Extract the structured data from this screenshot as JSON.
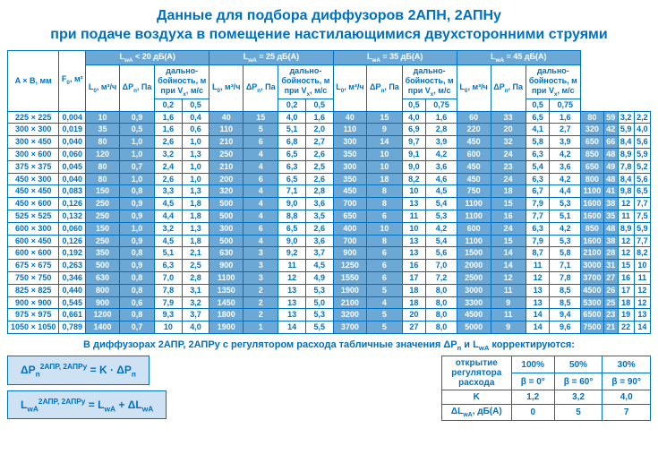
{
  "title_line1": "Данные для подбора диффузоров 2АПН, 2АПНу",
  "title_line2": "при подаче воздуха в помещение настилающимися двухсторонними струями",
  "table": {
    "col_size_header": "A × B, мм",
    "col_f0_header_html": "F<sub>0</sub>, м²",
    "group_headers": [
      "L<sub>wA</sub> < 20 дБ(A)",
      "L<sub>wA</sub> = 25 дБ(A)",
      "L<sub>wA</sub> = 35 дБ(A)",
      "L<sub>wA</sub> = 45 дБ(A)"
    ],
    "sub_L_html": "L<sub>0</sub>, м³/ч",
    "sub_dP_html": "ΔP<sub>п</sub>, Па",
    "sub_range_html": "дально-<br>бойность, м<br>при V<sub>x</sub>, м/с",
    "sub_range_cols_full": [
      "0,2",
      "0,5"
    ],
    "sub_range_cols_half": [
      "0,5",
      "0,75"
    ],
    "rows": [
      [
        "225 × 225",
        "0,004",
        "10",
        "0,9",
        "1,6",
        "0,4",
        "40",
        "15",
        "4,0",
        "1,6",
        "40",
        "15",
        "4,0",
        "1,6",
        "60",
        "33",
        "6,5",
        "1,6",
        "80",
        "59",
        "3,2",
        "2,2"
      ],
      [
        "300 × 300",
        "0,019",
        "35",
        "0,5",
        "1,6",
        "0,6",
        "110",
        "5",
        "5,1",
        "2,0",
        "110",
        "9",
        "6,9",
        "2,8",
        "220",
        "20",
        "4,1",
        "2,7",
        "320",
        "42",
        "5,9",
        "4,0"
      ],
      [
        "300 × 450",
        "0,040",
        "80",
        "1,0",
        "2,6",
        "1,0",
        "210",
        "6",
        "6,8",
        "2,7",
        "300",
        "14",
        "9,7",
        "3,9",
        "450",
        "32",
        "5,8",
        "3,9",
        "650",
        "66",
        "8,4",
        "5,6"
      ],
      [
        "300 × 600",
        "0,060",
        "120",
        "1,0",
        "3,2",
        "1,3",
        "250",
        "4",
        "6,5",
        "2,6",
        "350",
        "10",
        "9,1",
        "4,2",
        "600",
        "24",
        "6,3",
        "4,2",
        "850",
        "48",
        "8,9",
        "5,9"
      ],
      [
        "375 × 375",
        "0,045",
        "80",
        "0,7",
        "2,4",
        "1,0",
        "210",
        "4",
        "6,3",
        "2,5",
        "300",
        "10",
        "9,0",
        "3,6",
        "450",
        "23",
        "5,4",
        "3,6",
        "650",
        "49",
        "7,8",
        "5,2"
      ],
      [
        "450 × 300",
        "0,040",
        "80",
        "1,0",
        "2,6",
        "1,0",
        "200",
        "6",
        "6,5",
        "2,6",
        "350",
        "18",
        "8,2",
        "4,6",
        "450",
        "24",
        "6,3",
        "4,2",
        "800",
        "48",
        "8,4",
        "5,6"
      ],
      [
        "450 × 450",
        "0,083",
        "150",
        "0,8",
        "3,3",
        "1,3",
        "320",
        "4",
        "7,1",
        "2,8",
        "450",
        "8",
        "10",
        "4,5",
        "750",
        "18",
        "6,7",
        "4,4",
        "1100",
        "41",
        "9,8",
        "6,5"
      ],
      [
        "450 × 600",
        "0,126",
        "250",
        "0,9",
        "4,5",
        "1,8",
        "500",
        "4",
        "9,0",
        "3,6",
        "700",
        "8",
        "13",
        "5,4",
        "1100",
        "15",
        "7,9",
        "5,3",
        "1600",
        "38",
        "12",
        "7,7"
      ],
      [
        "525 × 525",
        "0,132",
        "250",
        "0,9",
        "4,4",
        "1,8",
        "500",
        "4",
        "8,8",
        "3,5",
        "650",
        "6",
        "11",
        "5,3",
        "1100",
        "16",
        "7,7",
        "5,1",
        "1600",
        "35",
        "11",
        "7,5"
      ],
      [
        "600 × 300",
        "0,060",
        "150",
        "1,0",
        "3,2",
        "1,3",
        "300",
        "6",
        "6,5",
        "2,6",
        "400",
        "10",
        "10",
        "4,2",
        "600",
        "24",
        "6,3",
        "4,2",
        "850",
        "48",
        "8,9",
        "5,9"
      ],
      [
        "600 × 450",
        "0,126",
        "250",
        "0,9",
        "4,5",
        "1,8",
        "500",
        "4",
        "9,0",
        "3,6",
        "700",
        "8",
        "13",
        "5,4",
        "1100",
        "15",
        "7,9",
        "5,3",
        "1600",
        "38",
        "12",
        "7,7"
      ],
      [
        "600 × 600",
        "0,192",
        "350",
        "0,8",
        "5,1",
        "2,1",
        "630",
        "3",
        "9,2",
        "3,7",
        "900",
        "6",
        "13",
        "5,6",
        "1500",
        "14",
        "8,7",
        "5,8",
        "2100",
        "28",
        "12",
        "8,2"
      ],
      [
        "675 × 675",
        "0,263",
        "500",
        "0,9",
        "6,3",
        "2,5",
        "900",
        "3",
        "11",
        "4,5",
        "1250",
        "6",
        "16",
        "7,0",
        "2000",
        "14",
        "11",
        "7,1",
        "3000",
        "31",
        "15",
        "10"
      ],
      [
        "750 × 750",
        "0,346",
        "630",
        "0,8",
        "7,0",
        "2,8",
        "1100",
        "3",
        "12",
        "4,9",
        "1550",
        "6",
        "17",
        "7,2",
        "2500",
        "12",
        "12",
        "7,8",
        "3700",
        "27",
        "16",
        "11"
      ],
      [
        "825 × 825",
        "0,440",
        "800",
        "0,8",
        "7,8",
        "3,1",
        "1350",
        "2",
        "13",
        "5,3",
        "1900",
        "5",
        "18",
        "8,0",
        "3000",
        "11",
        "13",
        "8,5",
        "4500",
        "26",
        "17",
        "12"
      ],
      [
        "900 × 900",
        "0,545",
        "900",
        "0,6",
        "7,9",
        "3,2",
        "1450",
        "2",
        "13",
        "5,0",
        "2100",
        "4",
        "18",
        "8,0",
        "3300",
        "9",
        "13",
        "8,5",
        "5300",
        "25",
        "18",
        "12"
      ],
      [
        "975 × 975",
        "0,661",
        "1200",
        "0,8",
        "9,3",
        "3,7",
        "1800",
        "2",
        "13",
        "5,3",
        "3200",
        "5",
        "20",
        "8,0",
        "4500",
        "11",
        "14",
        "9,4",
        "6500",
        "23",
        "19",
        "13"
      ],
      [
        "1050 × 1050",
        "0,789",
        "1400",
        "0,7",
        "10",
        "4,0",
        "1900",
        "1",
        "14",
        "5,5",
        "3700",
        "5",
        "27",
        "8,0",
        "5000",
        "9",
        "14",
        "9,6",
        "7500",
        "21",
        "22",
        "14"
      ]
    ]
  },
  "footnote_html": "В диффузорах 2АПР, 2АПРу с регулятором расхода табличные значения ΔP<sub>п</sub> и L<sub>wA</sub> корректируются:",
  "formula1_html": "ΔP<sub>п</sub><sup>2АПР, 2АПРу</sup> = K · ΔP<sub>п</sub>",
  "formula2_html": "L<sub>wA</sub><sup>2АПР, 2АПРу</sup> = L<sub>wA</sub>  + ΔL<sub>wA</sub>",
  "corr_table": {
    "header_html": "открытие<br>регулятора<br>расхода",
    "cols": [
      {
        "pct": "100%",
        "beta": "β = 0°"
      },
      {
        "pct": "50%",
        "beta": "β = 60°"
      },
      {
        "pct": "30%",
        "beta": "β = 90°"
      }
    ],
    "k_label": "K",
    "k_vals": [
      "1,2",
      "3,2",
      "4,0"
    ],
    "dl_label_html": "ΔL<sub>wA</sub>, дБ(A)",
    "dl_vals": [
      "0",
      "5",
      "7"
    ]
  },
  "colors": {
    "brand": "#0070c0",
    "header_bg": "#6ba8d6",
    "formula_bg": "#cfe2f3"
  }
}
